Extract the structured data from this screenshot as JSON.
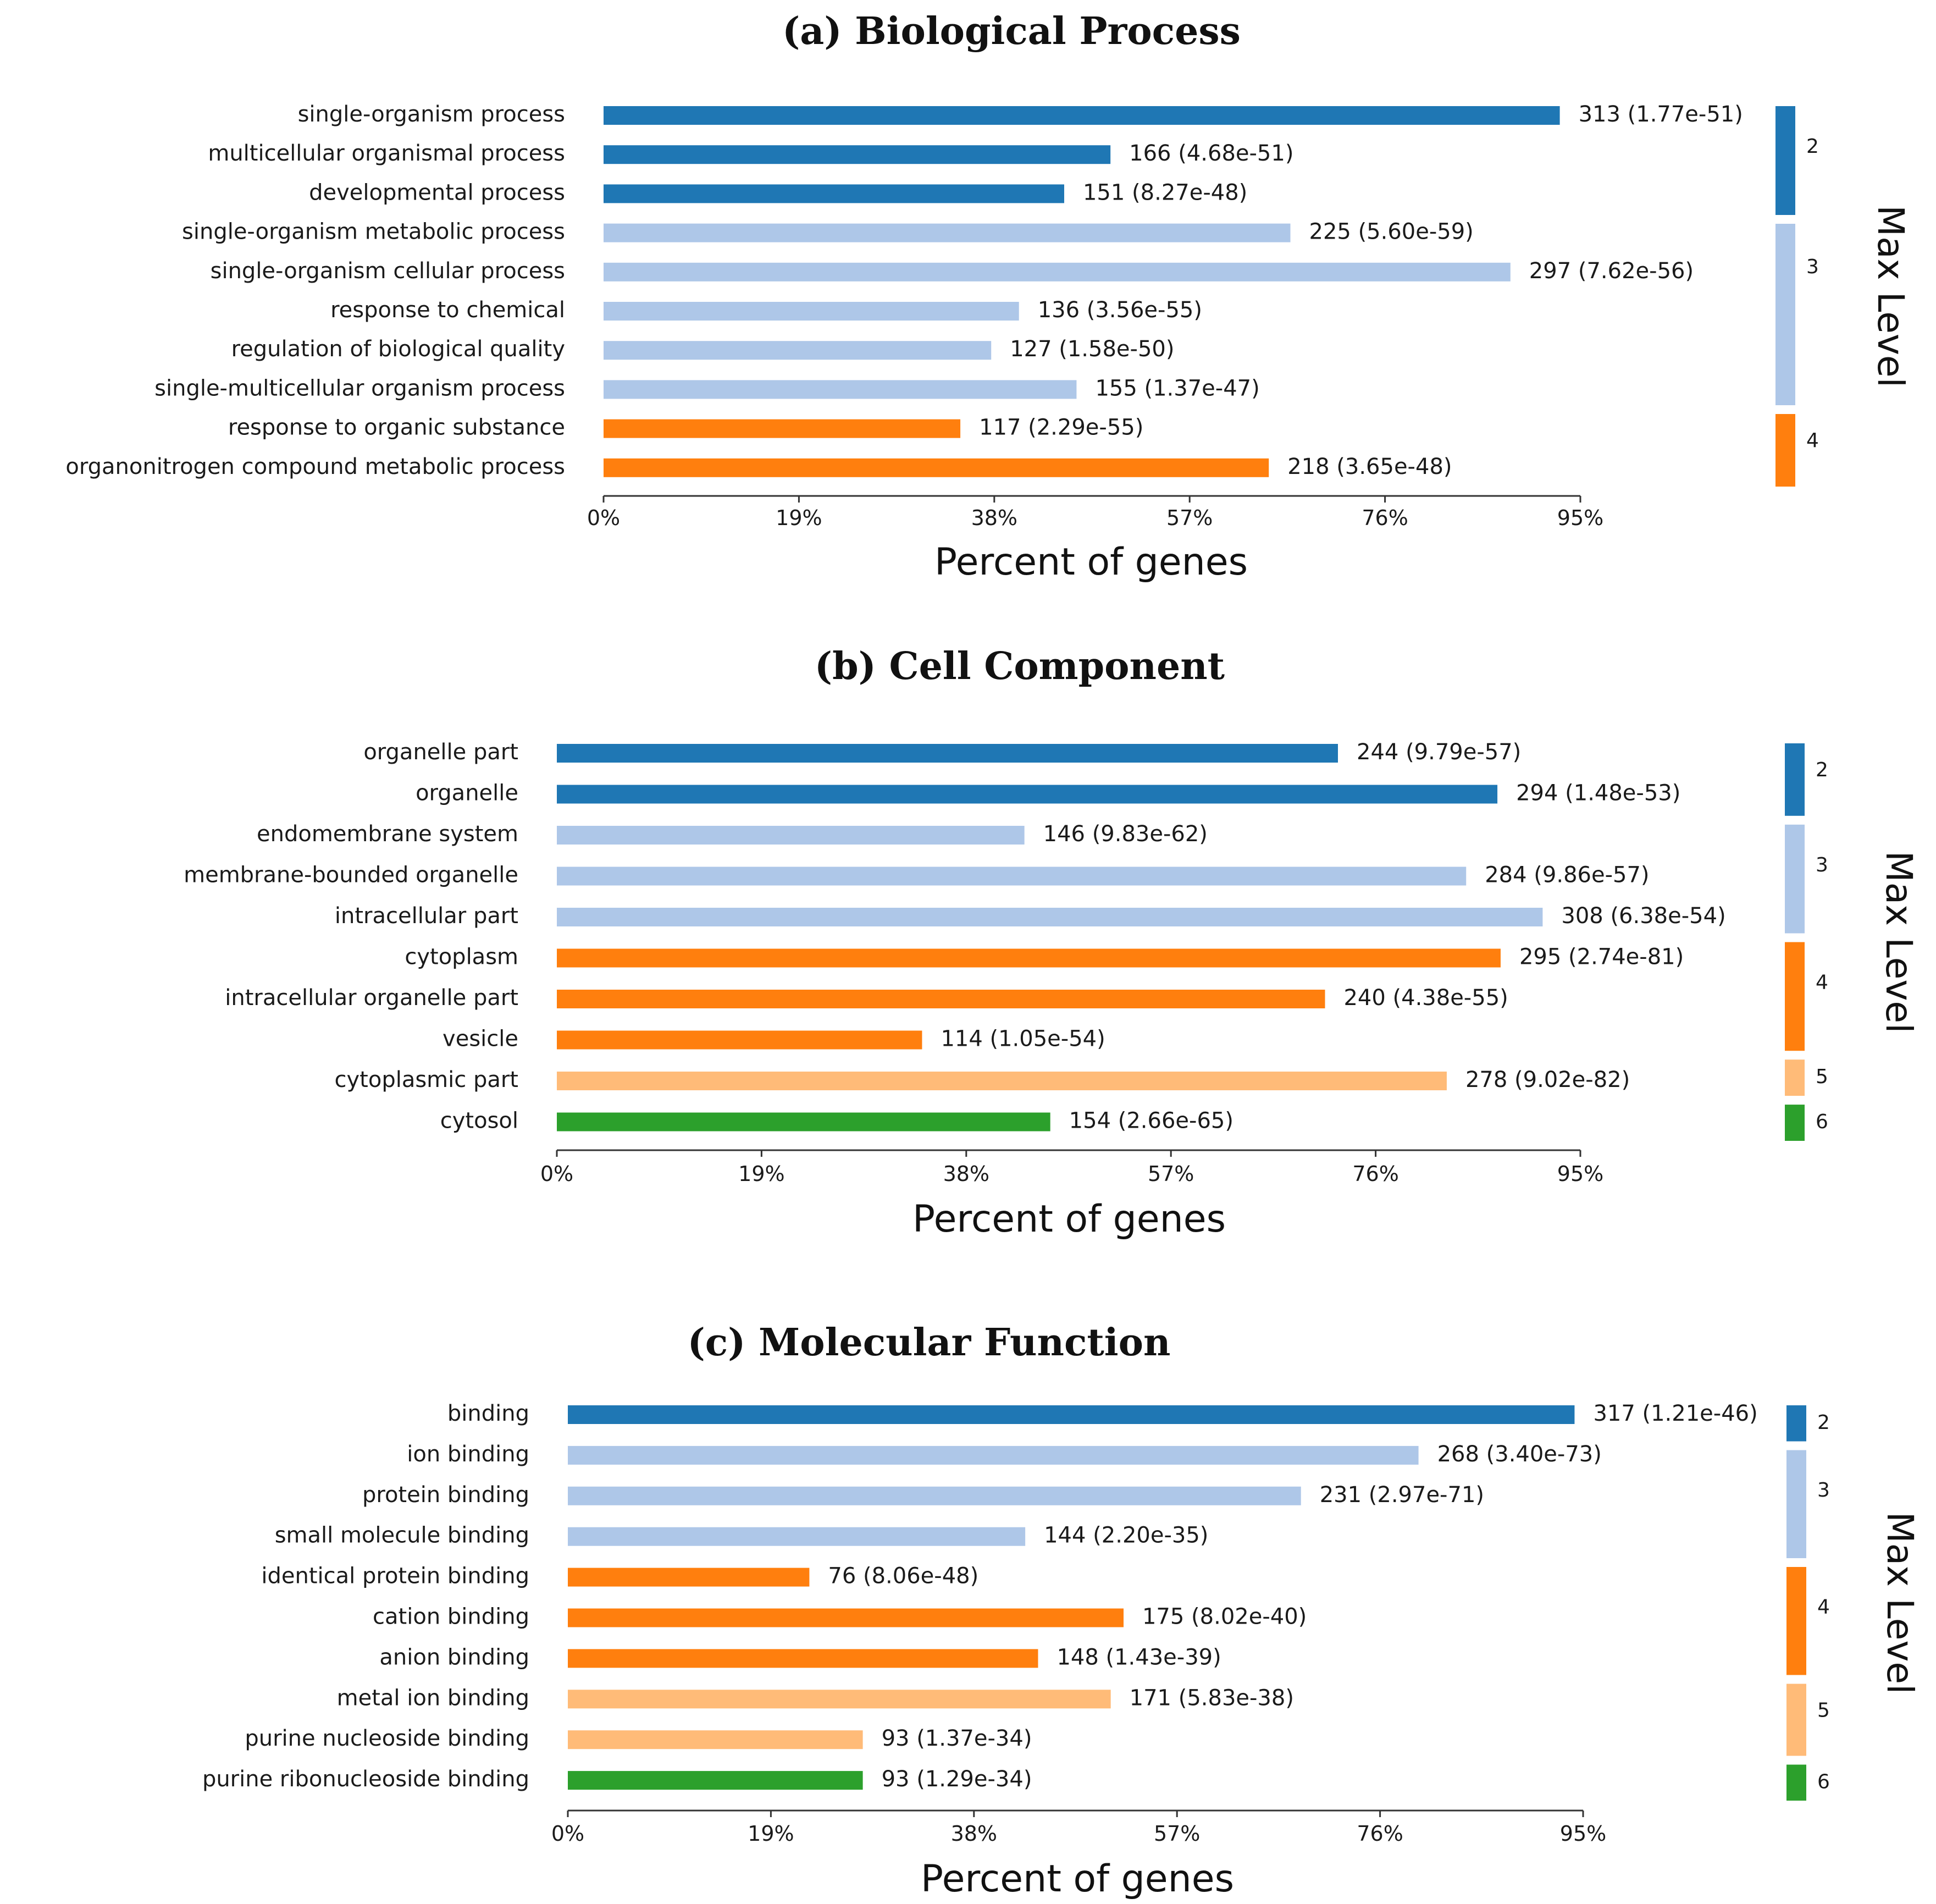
{
  "colors": {
    "level2": "#1f77b4",
    "level3": "#aec7e8",
    "level4": "#ff7f0e",
    "level5": "#ffbb78",
    "level6": "#2ca02c",
    "axis": "#333333"
  },
  "chart_data": [
    {
      "type": "bar",
      "orientation": "horizontal",
      "title": "(a) Biological Process",
      "xlabel": "Percent of genes",
      "xlim": [
        0,
        95
      ],
      "xticks": [
        "0%",
        "19%",
        "38%",
        "57%",
        "76%",
        "95%"
      ],
      "legend_title": "Max Level",
      "levels": [
        {
          "level": "2",
          "count": 3
        },
        {
          "level": "3",
          "count": 5
        },
        {
          "level": "4",
          "count": 2
        }
      ],
      "bars": [
        {
          "label": "single-organism process",
          "percent": 93.0,
          "value_label": "313 (1.77e-51)",
          "level": 2
        },
        {
          "label": "multicellular organismal process",
          "percent": 49.3,
          "value_label": "166 (4.68e-51)",
          "level": 2
        },
        {
          "label": "developmental process",
          "percent": 44.8,
          "value_label": "151 (8.27e-48)",
          "level": 2
        },
        {
          "label": "single-organism metabolic process",
          "percent": 66.8,
          "value_label": "225 (5.60e-59)",
          "level": 3
        },
        {
          "label": "single-organism cellular process",
          "percent": 88.2,
          "value_label": "297 (7.62e-56)",
          "level": 3
        },
        {
          "label": "response to chemical",
          "percent": 40.4,
          "value_label": "136 (3.56e-55)",
          "level": 3
        },
        {
          "label": "regulation of biological quality",
          "percent": 37.7,
          "value_label": "127 (1.58e-50)",
          "level": 3
        },
        {
          "label": "single-multicellular organism process",
          "percent": 46.0,
          "value_label": "155 (1.37e-47)",
          "level": 3
        },
        {
          "label": "response to organic substance",
          "percent": 34.7,
          "value_label": "117 (2.29e-55)",
          "level": 4
        },
        {
          "label": "organonitrogen compound metabolic process",
          "percent": 64.7,
          "value_label": "218 (3.65e-48)",
          "level": 4
        }
      ]
    },
    {
      "type": "bar",
      "orientation": "horizontal",
      "title": "(b)   Cell Component",
      "xlabel": "Percent of genes",
      "xlim": [
        0,
        95
      ],
      "xticks": [
        "0%",
        "19%",
        "38%",
        "57%",
        "76%",
        "95%"
      ],
      "legend_title": "Max Level",
      "levels": [
        {
          "level": "2",
          "count": 2
        },
        {
          "level": "3",
          "count": 3
        },
        {
          "level": "4",
          "count": 3
        },
        {
          "level": "5",
          "count": 1
        },
        {
          "level": "6",
          "count": 1
        }
      ],
      "bars": [
        {
          "label": "organelle part",
          "percent": 72.5,
          "value_label": "244 (9.79e-57)",
          "level": 2
        },
        {
          "label": "organelle",
          "percent": 87.3,
          "value_label": "294 (1.48e-53)",
          "level": 2
        },
        {
          "label": "endomembrane system",
          "percent": 43.4,
          "value_label": "146 (9.83e-62)",
          "level": 3
        },
        {
          "label": "membrane-bounded organelle",
          "percent": 84.4,
          "value_label": "284 (9.86e-57)",
          "level": 3
        },
        {
          "label": "intracellular part",
          "percent": 91.5,
          "value_label": "308 (6.38e-54)",
          "level": 3
        },
        {
          "label": "cytoplasm",
          "percent": 87.6,
          "value_label": "295 (2.74e-81)",
          "level": 4
        },
        {
          "label": "intracellular organelle part",
          "percent": 71.3,
          "value_label": "240 (4.38e-55)",
          "level": 4
        },
        {
          "label": "vesicle",
          "percent": 33.9,
          "value_label": "114 (1.05e-54)",
          "level": 4
        },
        {
          "label": "cytoplasmic part",
          "percent": 82.6,
          "value_label": "278 (9.02e-82)",
          "level": 5
        },
        {
          "label": "cytosol",
          "percent": 45.8,
          "value_label": "154 (2.66e-65)",
          "level": 6
        }
      ]
    },
    {
      "type": "bar",
      "orientation": "horizontal",
      "title": "(c)  Molecular Function",
      "xlabel": "Percent of genes",
      "xlim": [
        0,
        95
      ],
      "xticks": [
        "0%",
        "19%",
        "38%",
        "57%",
        "76%",
        "95%"
      ],
      "legend_title": "Max Level",
      "levels": [
        {
          "level": "2",
          "count": 1
        },
        {
          "level": "3",
          "count": 3
        },
        {
          "level": "4",
          "count": 3
        },
        {
          "level": "5",
          "count": 2
        },
        {
          "level": "6",
          "count": 1
        }
      ],
      "bars": [
        {
          "label": "binding",
          "percent": 94.2,
          "value_label": "317 (1.21e-46)",
          "level": 2
        },
        {
          "label": "ion binding",
          "percent": 79.6,
          "value_label": "268 (3.40e-73)",
          "level": 3
        },
        {
          "label": "protein binding",
          "percent": 68.6,
          "value_label": "231 (2.97e-71)",
          "level": 3
        },
        {
          "label": "small molecule binding",
          "percent": 42.8,
          "value_label": "144 (2.20e-35)",
          "level": 3
        },
        {
          "label": "identical protein binding",
          "percent": 22.6,
          "value_label": "76 (8.06e-48)",
          "level": 4
        },
        {
          "label": "cation binding",
          "percent": 52.0,
          "value_label": "175 (8.02e-40)",
          "level": 4
        },
        {
          "label": "anion binding",
          "percent": 44.0,
          "value_label": "148 (1.43e-39)",
          "level": 4
        },
        {
          "label": "metal ion binding",
          "percent": 50.8,
          "value_label": "171 (5.83e-38)",
          "level": 5
        },
        {
          "label": "purine nucleoside binding",
          "percent": 27.6,
          "value_label": "93 (1.37e-34)",
          "level": 5
        },
        {
          "label": "purine ribonucleoside binding",
          "percent": 27.6,
          "value_label": "93 (1.29e-34)",
          "level": 6
        }
      ]
    }
  ]
}
